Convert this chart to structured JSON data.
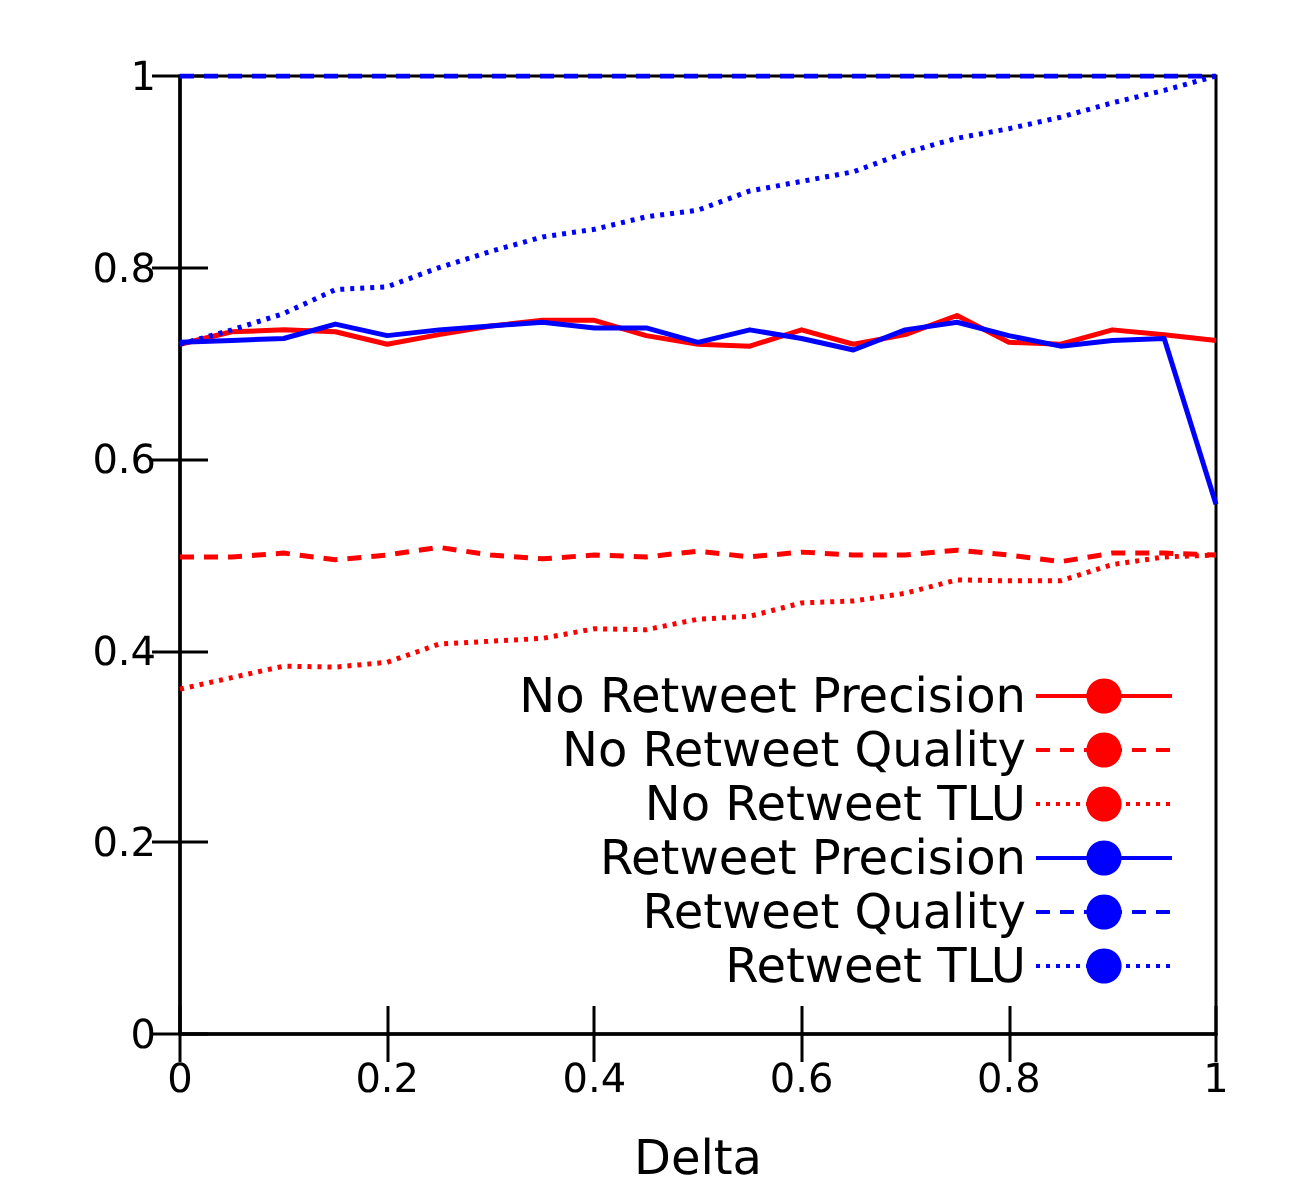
{
  "chart_data": {
    "type": "line",
    "xlabel": "Delta",
    "x": [
      0,
      0.05,
      0.1,
      0.15,
      0.2,
      0.25,
      0.3,
      0.35,
      0.4,
      0.45,
      0.5,
      0.55,
      0.6,
      0.65,
      0.7,
      0.75,
      0.8,
      0.85,
      0.9,
      0.95,
      1
    ],
    "xlim": [
      0,
      1
    ],
    "xticks": [
      0,
      0.2,
      0.4,
      0.6,
      0.8,
      1
    ],
    "ylim": [
      0,
      1
    ],
    "yticks": [
      0,
      0.2,
      0.4,
      0.6,
      0.8,
      1
    ],
    "grid": false,
    "legend": "bottom right",
    "marker": "none",
    "series": [
      {
        "name": "No Retweet Precision",
        "color": "#ff0000",
        "line_style": "solid",
        "values": [
          0.72,
          0.733,
          0.735,
          0.733,
          0.72,
          0.73,
          0.739,
          0.745,
          0.745,
          0.729,
          0.72,
          0.718,
          0.735,
          0.72,
          0.73,
          0.75,
          0.722,
          0.72,
          0.735,
          0.73,
          0.724
        ]
      },
      {
        "name": "No Retweet Quality",
        "color": "#ff0000",
        "line_style": "dashed",
        "values": [
          0.498,
          0.498,
          0.502,
          0.495,
          0.5,
          0.508,
          0.5,
          0.496,
          0.5,
          0.498,
          0.504,
          0.498,
          0.503,
          0.5,
          0.5,
          0.505,
          0.5,
          0.493,
          0.502,
          0.502,
          0.5
        ]
      },
      {
        "name": "No Retweet TLU",
        "color": "#ff0000",
        "line_style": "dotted",
        "values": [
          0.36,
          0.372,
          0.384,
          0.383,
          0.388,
          0.407,
          0.41,
          0.413,
          0.423,
          0.422,
          0.433,
          0.436,
          0.45,
          0.452,
          0.46,
          0.474,
          0.473,
          0.473,
          0.49,
          0.498,
          0.5
        ]
      },
      {
        "name": "Retweet Precision",
        "color": "#0000ff",
        "line_style": "solid",
        "values": [
          0.722,
          0.724,
          0.726,
          0.741,
          0.729,
          0.735,
          0.739,
          0.743,
          0.737,
          0.737,
          0.722,
          0.735,
          0.726,
          0.714,
          0.735,
          0.743,
          0.729,
          0.718,
          0.724,
          0.726,
          0.553
        ]
      },
      {
        "name": "Retweet Quality",
        "color": "#0000ff",
        "line_style": "dashed",
        "values": [
          1,
          1,
          1,
          1,
          1,
          1,
          1,
          1,
          1,
          1,
          1,
          1,
          1,
          1,
          1,
          1,
          1,
          1,
          1,
          1,
          1
        ]
      },
      {
        "name": "Retweet TLU",
        "color": "#0000ff",
        "line_style": "dotted",
        "values": [
          0.72,
          0.735,
          0.752,
          0.777,
          0.78,
          0.8,
          0.817,
          0.832,
          0.84,
          0.853,
          0.86,
          0.88,
          0.89,
          0.9,
          0.92,
          0.935,
          0.945,
          0.957,
          0.972,
          0.985,
          1.0
        ]
      }
    ]
  }
}
